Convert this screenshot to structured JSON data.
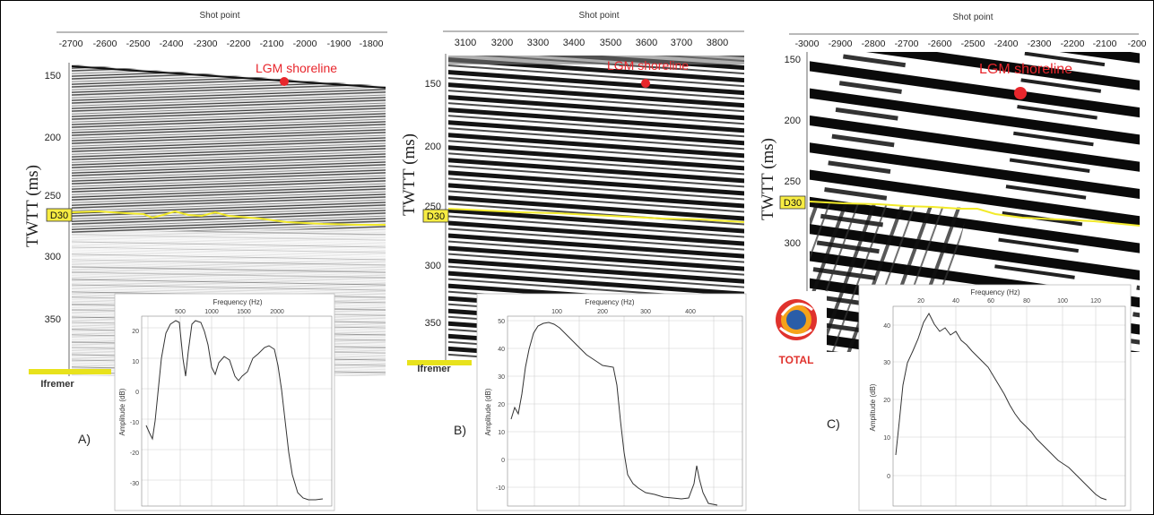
{
  "figure": {
    "panels": [
      {
        "letter": "A)",
        "x_axis_title": "Shot point",
        "x_ticks": [
          "-2700",
          "-2600",
          "-2500",
          "-2400",
          "-2300",
          "-2200",
          "-2100",
          "-2000",
          "-1900",
          "-1800"
        ],
        "y_axis_title": "TWTT (ms)",
        "y_ticks": [
          "150",
          "200",
          "250",
          "300",
          "350"
        ],
        "horizon_label": "D30",
        "shoreline_label": "LGM shoreline",
        "logo_text": "Ifremer",
        "spectrum": {
          "x_axis_title": "Frequency (Hz)",
          "x_ticks": [
            "500",
            "1000",
            "1500",
            "2000"
          ],
          "y_axis_title": "Amplitude (dB)",
          "y_ticks": [
            "20",
            "10",
            "0",
            "-10",
            "-20",
            "-30"
          ]
        }
      },
      {
        "letter": "B)",
        "x_axis_title": "Shot point",
        "x_ticks": [
          "3100",
          "3200",
          "3300",
          "3400",
          "3500",
          "3600",
          "3700",
          "3800"
        ],
        "y_axis_title": "TWTT (ms)",
        "y_ticks": [
          "150",
          "200",
          "250",
          "300",
          "350"
        ],
        "horizon_label": "D30",
        "shoreline_label": "LGM shoreline",
        "logo_text": "Ifremer",
        "spectrum": {
          "x_axis_title": "Frequency (Hz)",
          "x_ticks": [
            "100",
            "200",
            "300",
            "400"
          ],
          "y_axis_title": "Amplitude (dB)",
          "y_ticks": [
            "50",
            "40",
            "30",
            "20",
            "10",
            "0",
            "-10"
          ]
        }
      },
      {
        "letter": "C)",
        "x_axis_title": "Shot point",
        "x_ticks": [
          "-3000",
          "-2900",
          "-2800",
          "-2700",
          "-2600",
          "-2500",
          "-2400",
          "-2300",
          "-2200",
          "-2100",
          "-200"
        ],
        "y_axis_title": "TWTT (ms)",
        "y_ticks": [
          "150",
          "200",
          "250",
          "300"
        ],
        "horizon_label": "D30",
        "shoreline_label": "LGM shoreline",
        "logo_text": "TOTAL",
        "spectrum": {
          "x_axis_title": "Frequency (Hz)",
          "x_ticks": [
            "20",
            "40",
            "60",
            "80",
            "100",
            "120"
          ],
          "y_axis_title": "Amplitude (dB)",
          "y_ticks": [
            "40",
            "30",
            "20",
            "10",
            "0"
          ]
        }
      }
    ],
    "colors": {
      "horizon": "#f2ea2a",
      "shoreline_marker": "#e8262c",
      "label_fill": "#f7ec42",
      "frame": "#333333"
    }
  }
}
